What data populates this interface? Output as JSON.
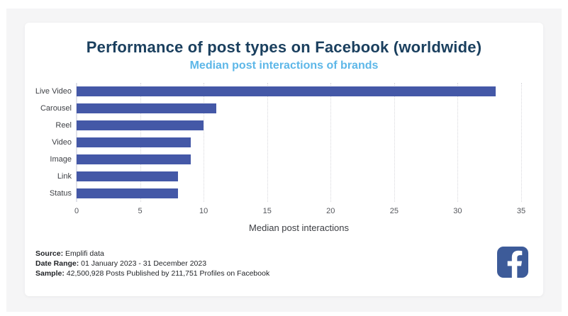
{
  "card": {
    "title": "Performance of post types on Facebook (worldwide)",
    "subtitle": "Median post interactions of brands"
  },
  "chart_data": {
    "type": "bar",
    "orientation": "horizontal",
    "title": "Performance of post types on Facebook (worldwide)",
    "subtitle": "Median post interactions of brands",
    "categories": [
      "Live Video",
      "Carousel",
      "Reel",
      "Video",
      "Image",
      "Link",
      "Status"
    ],
    "values": [
      33,
      11,
      10,
      9,
      9,
      8,
      8
    ],
    "xlabel": "Median post interactions",
    "xlim": [
      0,
      35
    ],
    "xticks": [
      0,
      5,
      10,
      15,
      20,
      25,
      30,
      35
    ],
    "grid": "vertical-dotted",
    "legend": "none",
    "bar_color": "#4458a7"
  },
  "footer": {
    "lines": [
      {
        "label": "Source:",
        "value": " Emplifi data"
      },
      {
        "label": "Date Range:",
        "value": " 01 January 2023 - 31 December 2023"
      },
      {
        "label": "Sample:",
        "value": " 42,500,928 Posts Published by 211,751 Profiles on Facebook"
      }
    ]
  },
  "branding": {
    "logo": "facebook-logo",
    "logo_color": "#3d5b99"
  },
  "colors": {
    "title": "#1a3f5e",
    "subtitle": "#5db7e8",
    "bar": "#4458a7",
    "axis_text": "#55575c",
    "category_text": "#3f4146",
    "frame_bg": "#f5f5f6",
    "card_bg": "#ffffff"
  }
}
